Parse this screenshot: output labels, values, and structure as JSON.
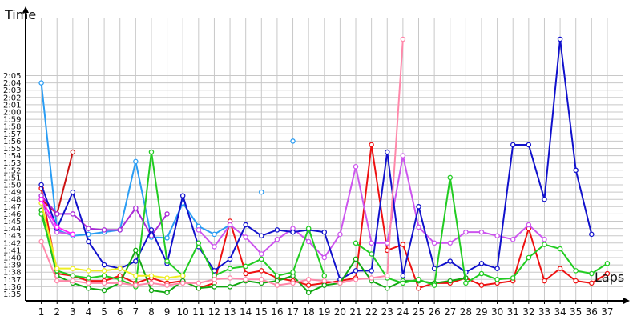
{
  "chart_data": {
    "type": "line",
    "title": "",
    "ylabel": "Time",
    "xlabel": "Laps",
    "x_ticks": [
      "1",
      "2",
      "3",
      "4",
      "5",
      "6",
      "7",
      "8",
      "9",
      "10",
      "11",
      "12",
      "13",
      "14",
      "15",
      "16",
      "17",
      "18",
      "19",
      "20",
      "21",
      "22",
      "23",
      "24",
      "25",
      "26",
      "27",
      "28",
      "29",
      "30",
      "31",
      "32",
      "33",
      "34",
      "35",
      "36",
      "37"
    ],
    "y_ticks": [
      "1:35",
      "1:36",
      "1:37",
      "1:38",
      "1:39",
      "1:40",
      "1:41",
      "1:42",
      "1:43",
      "1:44",
      "1:45",
      "1:46",
      "1:47",
      "1:48",
      "1:49",
      "1:50",
      "1:51",
      "1:52",
      "1:53",
      "1:54",
      "1:55",
      "1:56",
      "1:57",
      "1:58",
      "1:59",
      "2:00",
      "2:01",
      "2:02",
      "2:03",
      "2:04",
      "2:05"
    ],
    "ylim_seconds": [
      94,
      130
    ],
    "xlim": [
      0,
      37.5
    ],
    "grid": true,
    "colors": {
      "grid": "#c8c8c8",
      "axis": "#000000",
      "blue_light": "#2a9df4",
      "red": "#ee1111",
      "darkred": "#cc1111",
      "purple": "#aa2bd8",
      "violet": "#cc55ee",
      "navy": "#1111cc",
      "green": "#11a811",
      "lime": "#22cc22",
      "pink": "#ff88aa",
      "yellow": "#eeee22",
      "magenta": "#ff22ff"
    },
    "series": [
      {
        "color": "#2a9df4",
        "values": [
          124,
          103.8,
          103,
          103.2,
          103.5,
          103.8,
          113.2,
          102.8,
          102.7,
          107.5,
          104.3,
          103.2,
          104.5,
          null,
          109,
          null,
          116,
          null
        ]
      },
      {
        "color": "#ee1111",
        "values": [
          109.5,
          97.8,
          97.5,
          96.8,
          96.8,
          97.5,
          96.5,
          97.2,
          96.5,
          96.8,
          95.8,
          96.5,
          105,
          97.8,
          98.2,
          97.2,
          96.8,
          96.2,
          96.5,
          96.8,
          97.2,
          115.5,
          101,
          101.8,
          95.8,
          96.5,
          96.5,
          97.2,
          96.2,
          96.5,
          96.8,
          104,
          96.8,
          98.5,
          96.8,
          96.5,
          97.8
        ]
      },
      {
        "color": "#cc1111",
        "values": [
          108,
          106,
          114.5,
          null
        ]
      },
      {
        "color": "#aa2bd8",
        "values": [
          108.5,
          106,
          106,
          104,
          103.8,
          103.8,
          106.8,
          103,
          106,
          null
        ]
      },
      {
        "color": "#cc55ee",
        "values": [
          107.5,
          103.5,
          103.2,
          null,
          null,
          null,
          null,
          null,
          null,
          null,
          103.8,
          101.5,
          104.5,
          102.8,
          100.5,
          102.5,
          104,
          102.2,
          100,
          103.2,
          112.5,
          102,
          102,
          114,
          104.2,
          102,
          102,
          103.5,
          103.5,
          103,
          102.5,
          104.5,
          102.5
        ]
      },
      {
        "color": "#1111cc",
        "values": [
          110,
          104,
          109,
          102.2,
          99,
          98.5,
          99.5,
          103.8,
          99.2,
          108.5,
          101.5,
          98.2,
          99.8,
          104.5,
          103,
          103.8,
          103.5,
          103.8,
          103.5,
          97,
          98.2,
          98.2,
          114.5,
          97.5,
          107,
          98.5,
          99.5,
          98,
          99.2,
          98.5,
          115.5,
          115.5,
          108,
          130,
          112,
          103.2
        ]
      },
      {
        "color": "#11a811",
        "values": [
          106.5,
          97.5,
          96.5,
          95.8,
          95.5,
          96.5,
          101,
          95.5,
          95.2,
          96.8,
          95.8,
          96,
          96,
          96.8,
          96.5,
          96.8,
          97.5,
          95.2,
          96.2,
          96.5,
          99.8,
          96.8,
          95.8,
          96.8,
          96.8,
          96.5,
          96.8,
          97.2
        ]
      },
      {
        "color": "#22cc22",
        "values": [
          106,
          98.2,
          97.5,
          97.2,
          97.5,
          97,
          96,
          114.5,
          99.5,
          97.5,
          102,
          97.5,
          98.5,
          98.8,
          99.8,
          97.5,
          98,
          104,
          97.5,
          null,
          102,
          100.5,
          97.2,
          96.5,
          97,
          96.2,
          111,
          96.5,
          97.8,
          97,
          97.2,
          100,
          101.8,
          101.2,
          98.2,
          97.8,
          99.2
        ]
      },
      {
        "color": "#ff88aa",
        "values": [
          102.2,
          96.8,
          96.8,
          96.5,
          96.5,
          96.5,
          96.2,
          96.5,
          96.2,
          96.5,
          96.5,
          97,
          97.2,
          97,
          97,
          96.2,
          96.5,
          97,
          96.8,
          96.5,
          97,
          97.2,
          97.5,
          130
        ]
      },
      {
        "color": "#eeee22",
        "values": [
          107.5,
          98.5,
          98.5,
          98.2,
          98.2,
          98.5,
          97.5,
          97.5,
          97.2,
          97.5
        ]
      },
      {
        "color": "#ff22ff",
        "values": [
          108,
          104.2,
          103.2,
          null
        ]
      }
    ]
  }
}
